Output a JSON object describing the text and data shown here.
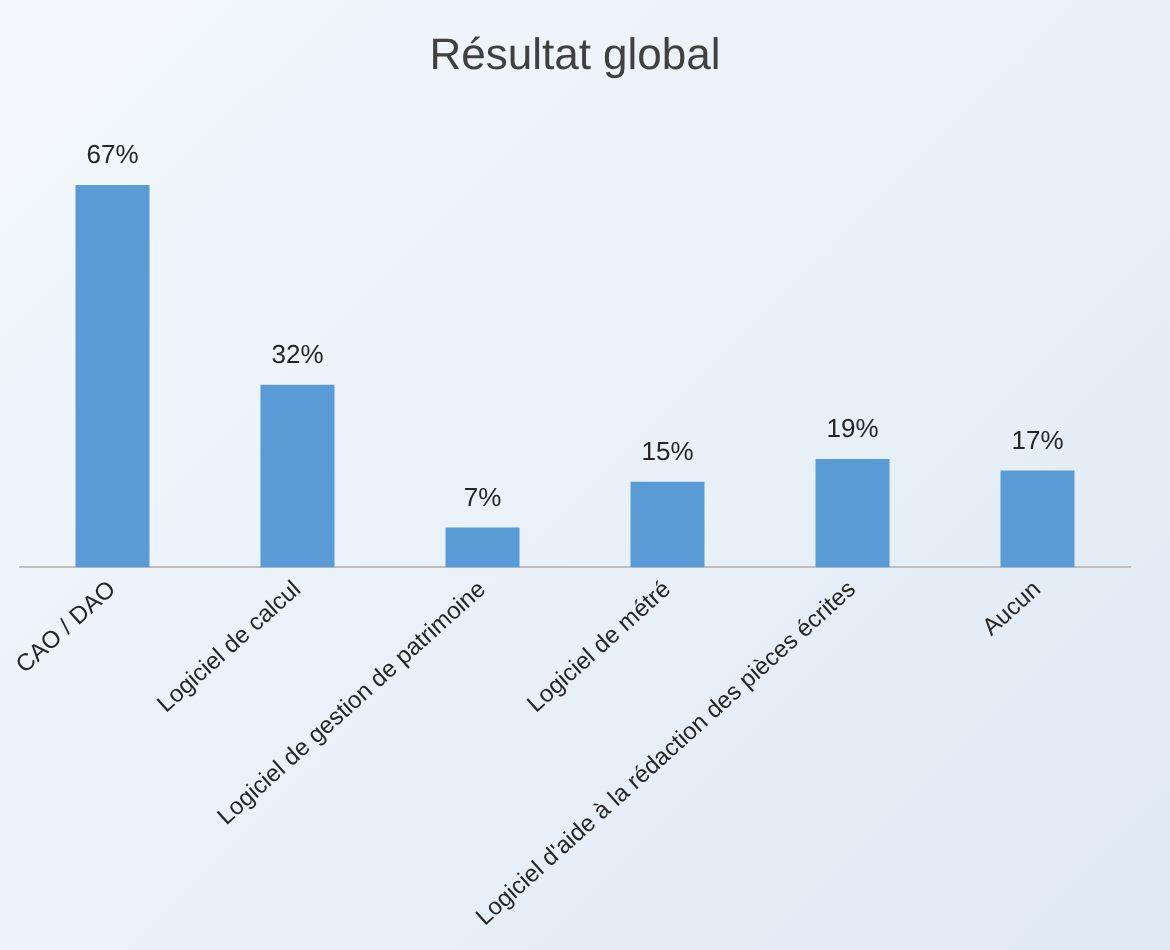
{
  "chart_data": {
    "type": "bar",
    "title": "Résultat global",
    "categories": [
      "CAO / DAO",
      "Logiciel de calcul",
      "Logiciel de gestion de patrimoine",
      "Logiciel de métré",
      "Logiciel d'aide à la rédaction des pièces écrites",
      "Aucun"
    ],
    "values": [
      67,
      32,
      7,
      15,
      19,
      17
    ],
    "value_labels": [
      "67%",
      "32%",
      "7%",
      "15%",
      "19%",
      "17%"
    ],
    "color": "#5b9bd5",
    "grid": false,
    "legend": false
  }
}
